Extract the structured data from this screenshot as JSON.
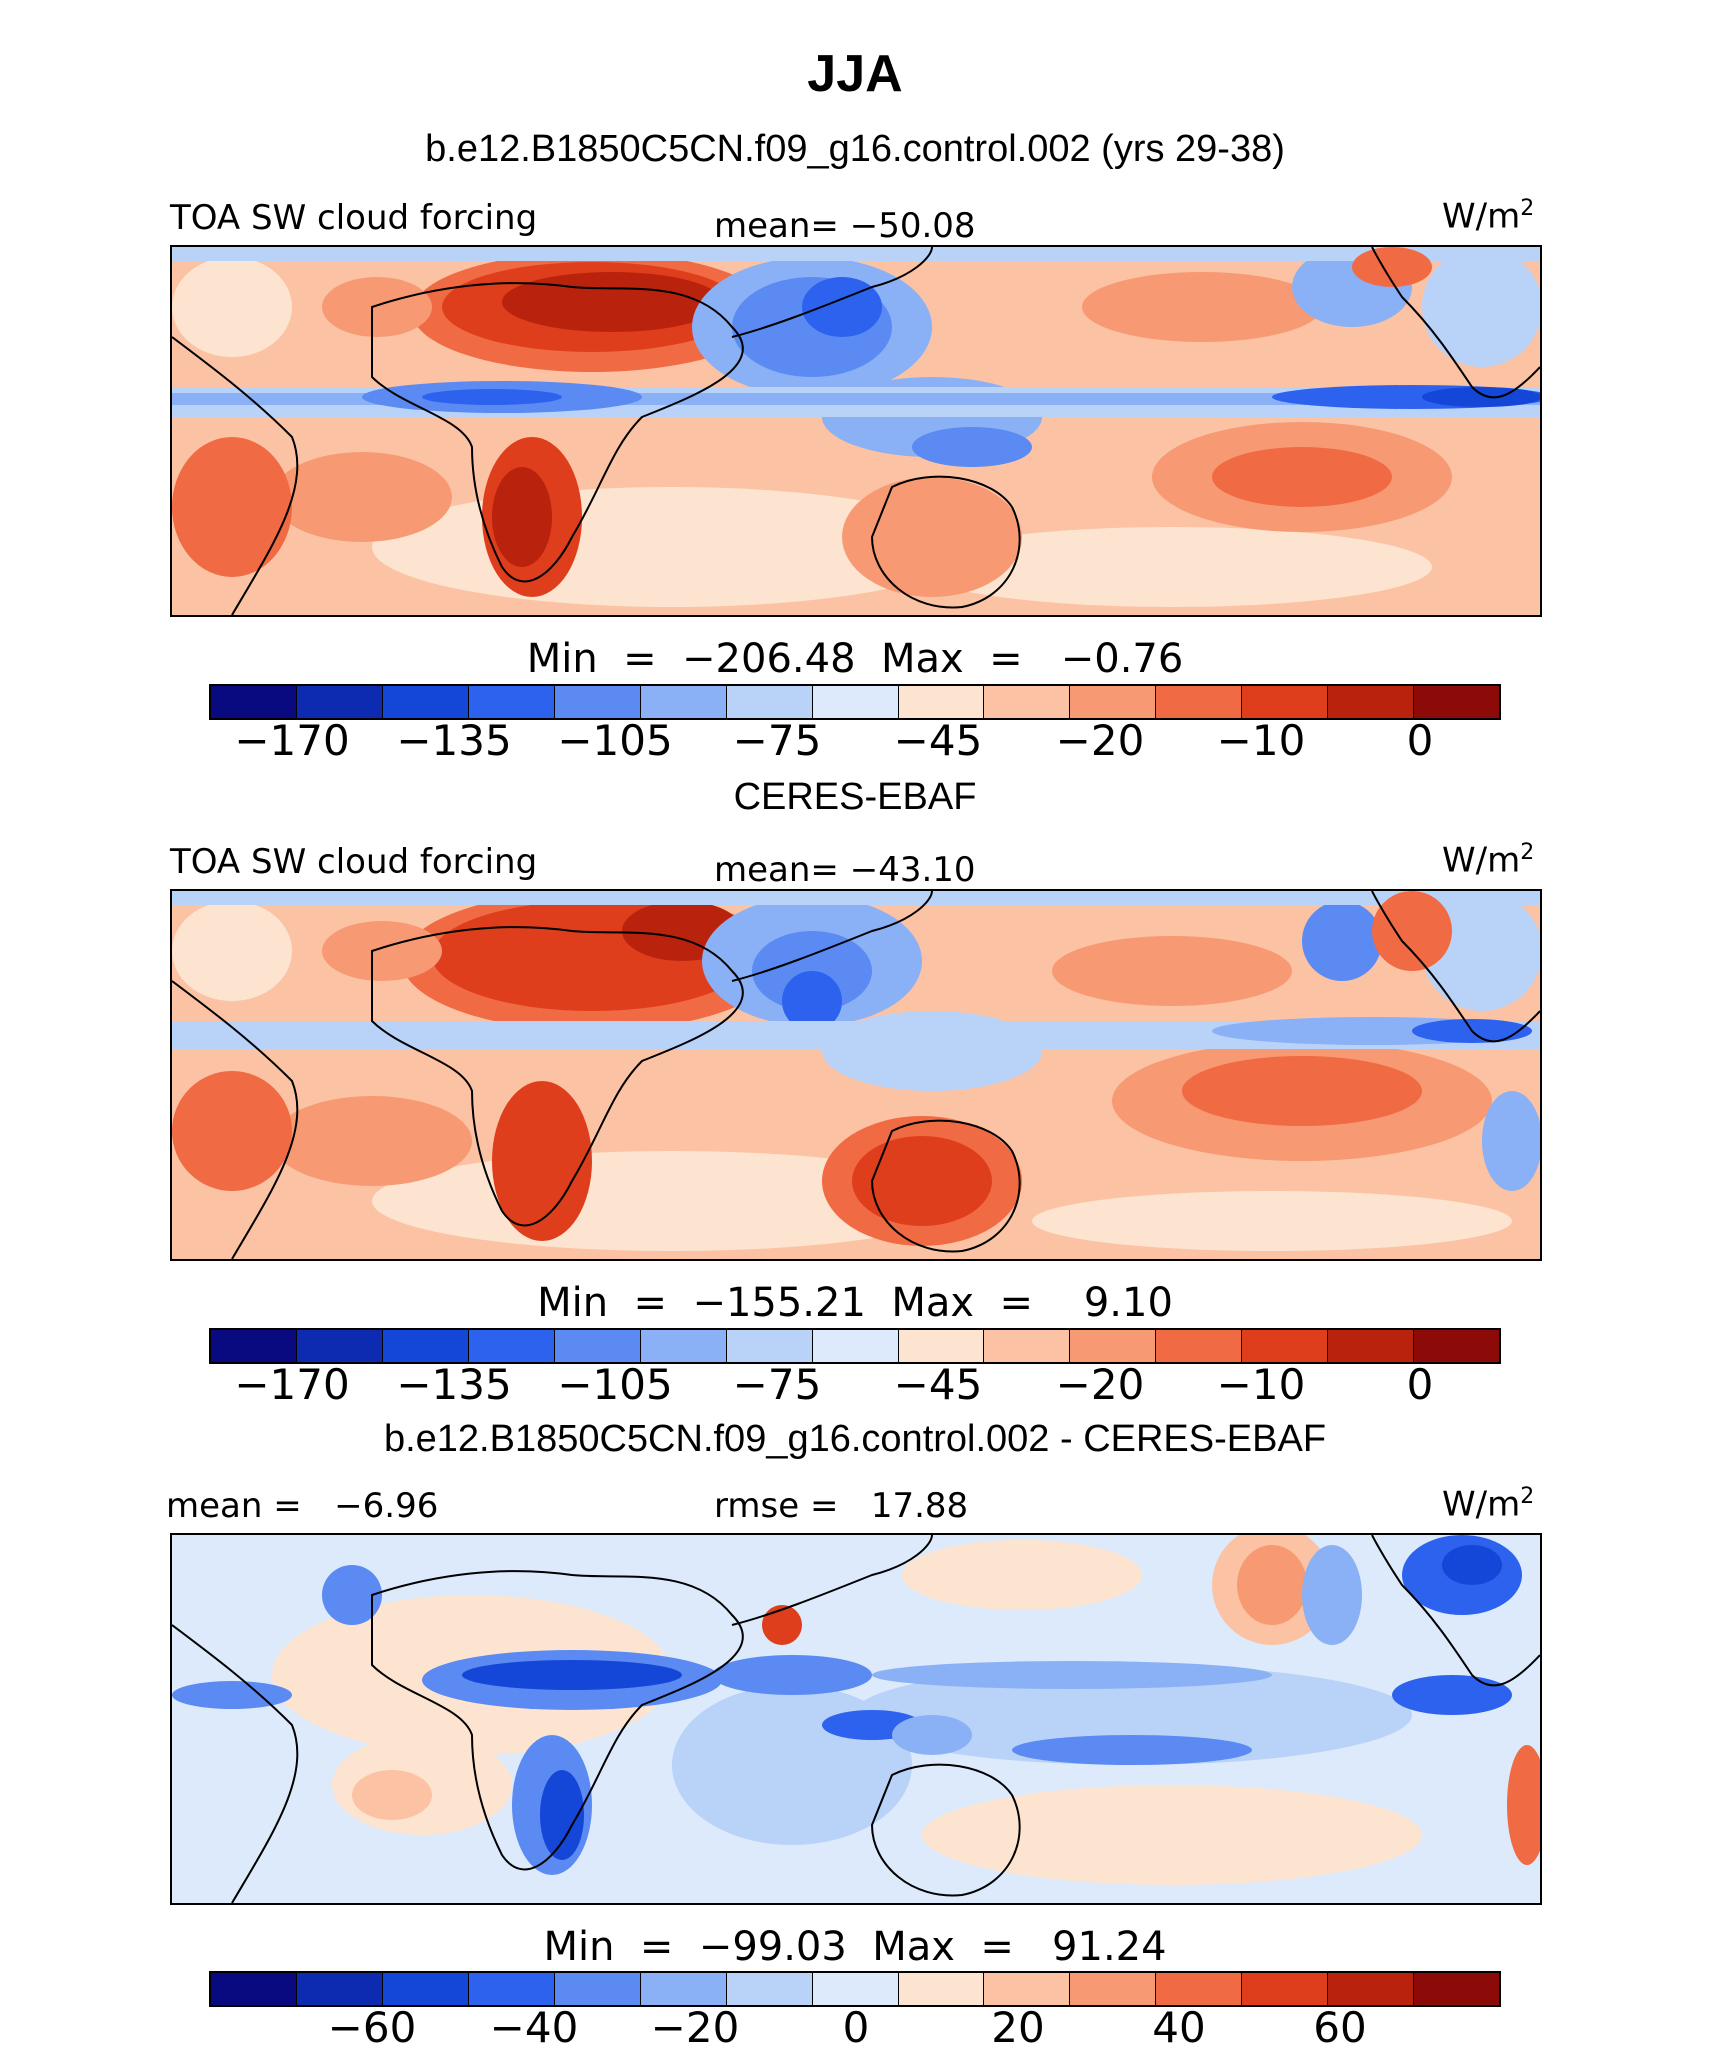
{
  "title": "JJA",
  "panels": [
    {
      "heading": "b.e12.B1850C5CN.f09_g16.control.002 (yrs 29-38)",
      "left_label": "TOA SW cloud forcing",
      "center_label": "mean= −50.08",
      "units": "W/m",
      "units_sup": "2",
      "minmax": "Min  =  −206.48  Max  =   −0.76",
      "ticks": [
        "−170",
        "−135",
        "−105",
        "−75",
        "−45",
        "−20",
        "−10",
        "0"
      ]
    },
    {
      "heading": "CERES-EBAF",
      "left_label": "TOA SW cloud forcing",
      "center_label": "mean= −43.10",
      "units": "W/m",
      "units_sup": "2",
      "minmax": "Min  =  −155.21  Max  =    9.10",
      "ticks": [
        "−170",
        "−135",
        "−105",
        "−75",
        "−45",
        "−20",
        "−10",
        "0"
      ]
    },
    {
      "heading": "b.e12.B1850C5CN.f09_g16.control.002 - CERES-EBAF",
      "left_label": "mean =   −6.96",
      "center_label": "rmse =   17.88",
      "units": "W/m",
      "units_sup": "2",
      "minmax": "Min  =  −99.03  Max  =   91.24",
      "ticks": [
        "−60",
        "−40",
        "−20",
        "0",
        "20",
        "40",
        "60"
      ]
    }
  ],
  "colors": {
    "colorbar": [
      "#0a0a80",
      "#0d2bb0",
      "#1446d8",
      "#2c62ee",
      "#5a8af2",
      "#8ab0f5",
      "#b9d2f8",
      "#dceafb",
      "#fde4d0",
      "#fbc3a4",
      "#f79a73",
      "#f06a44",
      "#de3e1c",
      "#b9220c",
      "#8c0a08"
    ]
  },
  "chart_data": [
    {
      "type": "heatmap",
      "title": "b.e12.B1850C5CN.f09_g16.control.002 (yrs 29-38)",
      "variable": "TOA SW cloud forcing",
      "units": "W/m2",
      "mean": -50.08,
      "min": -206.48,
      "max": -0.76,
      "colorbar_ticks": [
        -170,
        -135,
        -105,
        -75,
        -45,
        -20,
        -10,
        0
      ]
    },
    {
      "type": "heatmap",
      "title": "CERES-EBAF",
      "variable": "TOA SW cloud forcing",
      "units": "W/m2",
      "mean": -43.1,
      "min": -155.21,
      "max": 9.1,
      "colorbar_ticks": [
        -170,
        -135,
        -105,
        -75,
        -45,
        -20,
        -10,
        0
      ]
    },
    {
      "type": "heatmap",
      "title": "b.e12.B1850C5CN.f09_g16.control.002 - CERES-EBAF",
      "units": "W/m2",
      "mean": -6.96,
      "rmse": 17.88,
      "min": -99.03,
      "max": 91.24,
      "colorbar_ticks": [
        -60,
        -40,
        -20,
        0,
        20,
        40,
        60
      ]
    }
  ]
}
